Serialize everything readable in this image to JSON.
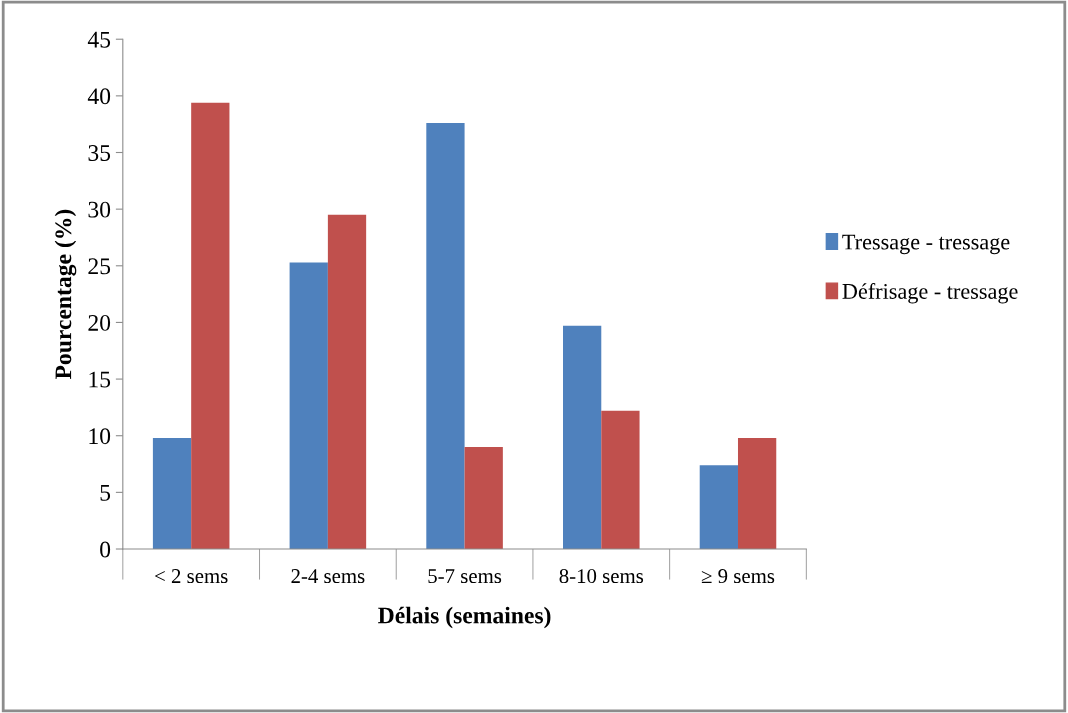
{
  "chart_data": {
    "type": "bar",
    "xlabel": "Délais (semaines)",
    "ylabel": "Pourcentage (%)",
    "categories": [
      "< 2 sems",
      "2-4 sems",
      "5-7 sems",
      "8-10 sems",
      "≥ 9 sems"
    ],
    "series": [
      {
        "name": "Tressage - tressage",
        "color": "#4f81bd",
        "values": [
          9.8,
          25.3,
          37.6,
          19.7,
          7.4
        ]
      },
      {
        "name": "Défrisage - tressage",
        "color": "#c0504d",
        "values": [
          39.4,
          29.5,
          9.0,
          12.2,
          9.8
        ]
      }
    ],
    "ylim": [
      0,
      45
    ],
    "yticks": [
      0,
      5,
      10,
      15,
      20,
      25,
      30,
      35,
      40,
      45
    ],
    "grid": false,
    "legend": "right"
  }
}
